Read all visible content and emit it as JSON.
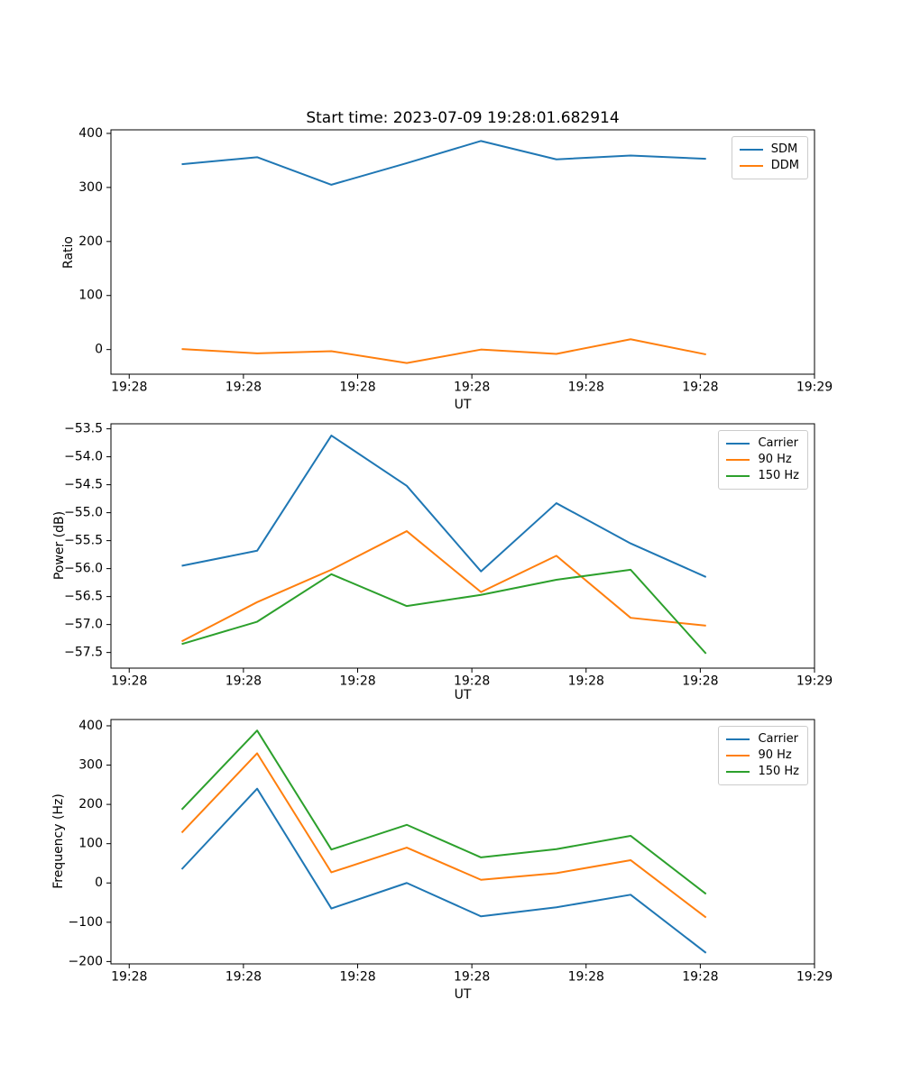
{
  "figure": {
    "title": "Start time: 2023-07-09 19:28:01.682914"
  },
  "colors": {
    "blue": "#1f77b4",
    "orange": "#ff7f0e",
    "green": "#2ca02c",
    "spine": "#000000",
    "legend_border": "#cccccc"
  },
  "chart_data": [
    {
      "type": "line",
      "title": "Start time: 2023-07-09 19:28:01.682914",
      "xlabel": "UT",
      "ylabel": "Ratio",
      "grid": false,
      "legend_position": "upper right",
      "x_seconds": [
        4.6,
        11.2,
        17.7,
        24.3,
        30.8,
        37.4,
        43.9,
        50.5
      ],
      "xlim_seconds": [
        -1.6,
        60
      ],
      "xtick_seconds": [
        0,
        10,
        20,
        30,
        40,
        50,
        60
      ],
      "xtick_labels": [
        "19:28",
        "19:28",
        "19:28",
        "19:28",
        "19:28",
        "19:28",
        "19:29"
      ],
      "ylim": [
        -45.6,
        406.6
      ],
      "yticks": [
        0,
        100,
        200,
        300,
        400
      ],
      "ytick_labels": [
        "0",
        "100",
        "200",
        "300",
        "400"
      ],
      "series": [
        {
          "name": "SDM",
          "color": "#1f77b4",
          "values": [
            343,
            356,
            305,
            345,
            386,
            352,
            359,
            353
          ]
        },
        {
          "name": "DDM",
          "color": "#ff7f0e",
          "values": [
            1,
            -7,
            -3,
            -25,
            0,
            -8,
            19,
            -9
          ]
        }
      ]
    },
    {
      "type": "line",
      "title": "",
      "xlabel": "UT",
      "ylabel": "Power (dB)",
      "grid": false,
      "legend_position": "upper right",
      "x_seconds": [
        4.6,
        11.2,
        17.7,
        24.3,
        30.8,
        37.4,
        43.9,
        50.5
      ],
      "xlim_seconds": [
        -1.6,
        60
      ],
      "xtick_seconds": [
        0,
        10,
        20,
        30,
        40,
        50,
        60
      ],
      "xtick_labels": [
        "19:28",
        "19:28",
        "19:28",
        "19:28",
        "19:28",
        "19:28",
        "19:29"
      ],
      "ylim": [
        -57.78,
        -53.41
      ],
      "yticks": [
        -57.5,
        -57.0,
        -56.5,
        -56.0,
        -55.5,
        -55.0,
        -54.5,
        -54.0,
        -53.5
      ],
      "ytick_labels": [
        "−57.5",
        "−57.0",
        "−56.5",
        "−56.0",
        "−55.5",
        "−55.0",
        "−54.5",
        "−54.0",
        "−53.5"
      ],
      "series": [
        {
          "name": "Carrier",
          "color": "#1f77b4",
          "values": [
            -55.95,
            -55.68,
            -53.62,
            -54.52,
            -56.05,
            -54.83,
            -55.55,
            -56.15
          ]
        },
        {
          "name": "90 Hz",
          "color": "#ff7f0e",
          "values": [
            -57.3,
            -56.6,
            -56.02,
            -55.33,
            -56.42,
            -55.77,
            -56.88,
            -57.02
          ]
        },
        {
          "name": "150 Hz",
          "color": "#2ca02c",
          "values": [
            -57.35,
            -56.95,
            -56.1,
            -56.67,
            -56.47,
            -56.2,
            -56.02,
            -57.52
          ]
        }
      ]
    },
    {
      "type": "line",
      "title": "",
      "xlabel": "UT",
      "ylabel": "Frequency (Hz)",
      "grid": false,
      "legend_position": "upper right",
      "x_seconds": [
        4.6,
        11.2,
        17.7,
        24.3,
        30.8,
        37.4,
        43.9,
        50.5
      ],
      "xlim_seconds": [
        -1.6,
        60
      ],
      "xtick_seconds": [
        0,
        10,
        20,
        30,
        40,
        50,
        60
      ],
      "xtick_labels": [
        "19:28",
        "19:28",
        "19:28",
        "19:28",
        "19:28",
        "19:28",
        "19:29"
      ],
      "ylim": [
        -206,
        416
      ],
      "yticks": [
        -200,
        -100,
        0,
        100,
        200,
        300,
        400
      ],
      "ytick_labels": [
        "−200",
        "−100",
        "0",
        "100",
        "200",
        "300",
        "400"
      ],
      "series": [
        {
          "name": "Carrier",
          "color": "#1f77b4",
          "values": [
            35,
            240,
            -65,
            0,
            -85,
            -62,
            -30,
            -178
          ]
        },
        {
          "name": "90 Hz",
          "color": "#ff7f0e",
          "values": [
            128,
            330,
            27,
            90,
            8,
            25,
            58,
            -88
          ]
        },
        {
          "name": "150 Hz",
          "color": "#2ca02c",
          "values": [
            187,
            388,
            85,
            148,
            65,
            86,
            120,
            -28
          ]
        }
      ]
    }
  ]
}
